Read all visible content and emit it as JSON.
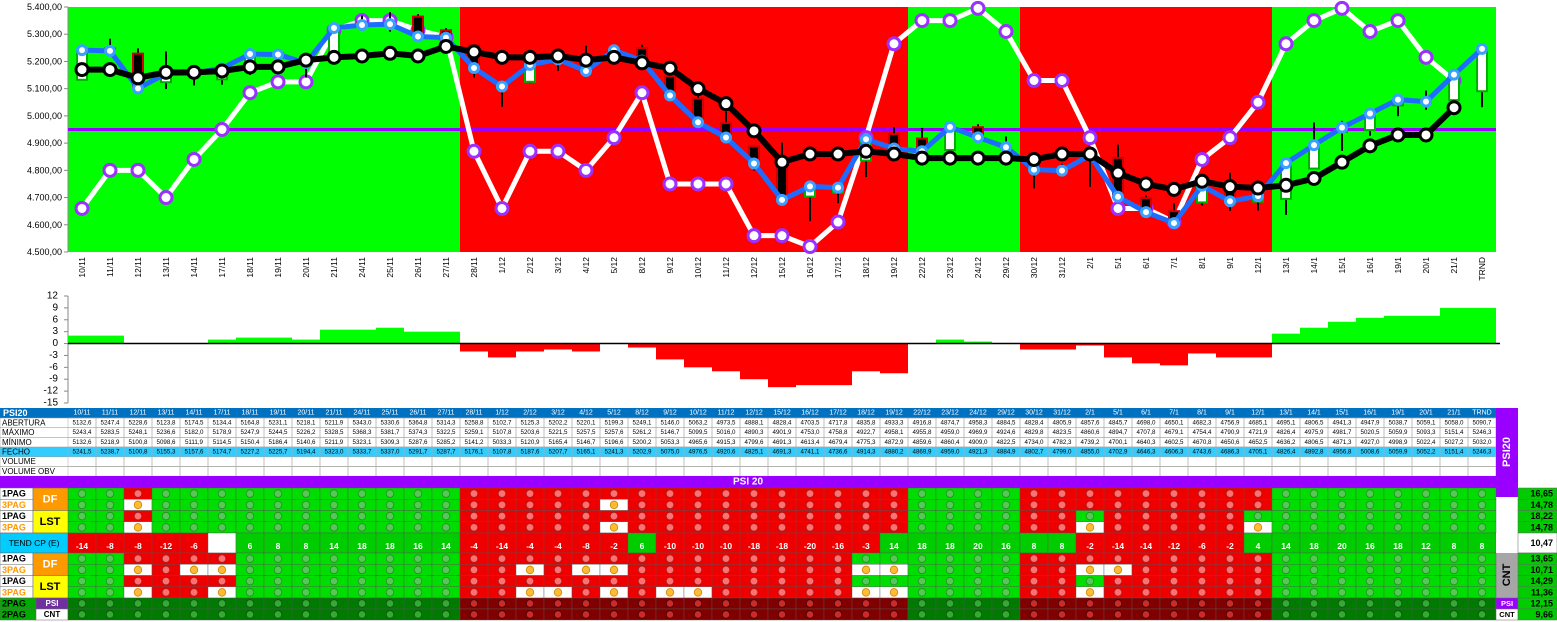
{
  "chart_data": [
    {
      "type": "candlestick",
      "categories": [
        "10/11",
        "11/11",
        "12/11",
        "13/11",
        "14/11",
        "17/11",
        "18/11",
        "19/11",
        "20/11",
        "21/11",
        "24/11",
        "25/11",
        "26/11",
        "27/11",
        "28/11",
        "1/12",
        "2/12",
        "3/12",
        "4/12",
        "5/12",
        "8/12",
        "9/12",
        "10/12",
        "11/12",
        "12/12",
        "15/12",
        "16/12",
        "17/12",
        "18/12",
        "19/12",
        "22/12",
        "23/12",
        "24/12",
        "29/12",
        "30/12",
        "31/12",
        "2/1",
        "5/1",
        "6/1",
        "7/1",
        "8/1",
        "9/1",
        "12/1",
        "13/1",
        "14/1",
        "15/1",
        "16/1",
        "19/1",
        "20/1",
        "21/1",
        "TRND"
      ],
      "open": [
        5132.6,
        5247.4,
        5228.6,
        5123.8,
        5174.5,
        5134.4,
        5164.8,
        5231.1,
        5218.1,
        5211.9,
        5343.0,
        5330.6,
        5364.8,
        5314.3,
        5258.8,
        5102.7,
        5125.3,
        5202.2,
        5220.1,
        5199.3,
        5249.1,
        5146.0,
        5063.2,
        4973.5,
        4888.1,
        4828.4,
        4703.5,
        4717.8,
        4835.8,
        4933.3,
        4916.8,
        4874.7,
        4958.3,
        4884.5,
        4828.4,
        4805.9,
        4857.6,
        4845.7,
        4698.0,
        4650.1,
        4682.3,
        4756.9,
        4685.1,
        4695.1,
        4806.5,
        4941.3,
        4947.9,
        5038.7,
        5059.1,
        5058.0,
        5090.7
      ],
      "high": [
        5243.4,
        5283.5,
        5248.1,
        5236.6,
        5182.0,
        5178.9,
        5247.9,
        5244.5,
        5226.2,
        5328.5,
        5368.3,
        5381.7,
        5374.3,
        5322.5,
        5259.1,
        5107.8,
        5203.6,
        5221.5,
        5257.5,
        5257.6,
        5261.2,
        5146.7,
        5099.5,
        5016.0,
        4890.3,
        4901.9,
        4753.0,
        4758.8,
        4922.7,
        4958.1,
        4955.8,
        4959.0,
        4969.9,
        4924.6,
        4829.8,
        4823.5,
        4860.6,
        4894.7,
        4707.8,
        4679.1,
        4754.4,
        4790.9,
        4721.9,
        4826.4,
        4975.9,
        4981.7,
        5020.5,
        5059.9,
        5093.3,
        5151.4,
        5246.3
      ],
      "low": [
        5132.6,
        5218.9,
        5100.8,
        5098.6,
        5111.9,
        5114.5,
        5150.4,
        5186.4,
        5140.6,
        5211.9,
        5323.1,
        5309.3,
        5287.6,
        5285.2,
        5141.2,
        5033.3,
        5120.9,
        5165.4,
        5146.7,
        5196.6,
        5200.2,
        5053.3,
        4965.6,
        4915.3,
        4799.6,
        4691.3,
        4613.4,
        4679.4,
        4775.3,
        4872.9,
        4859.6,
        4860.4,
        4909.0,
        4822.5,
        4734.0,
        4782.3,
        4739.2,
        4700.1,
        4640.3,
        4602.5,
        4670.8,
        4650.6,
        4652.5,
        4636.2,
        4806.5,
        4871.3,
        4927.0,
        4998.9,
        5022.4,
        5027.2,
        5032.0
      ],
      "close": [
        5241.5,
        5238.7,
        5100.8,
        5155.3,
        5157.6,
        5174.7,
        5227.2,
        5225.7,
        5194.4,
        5323.0,
        5333.7,
        5337.0,
        5291.7,
        5287.7,
        5176.1,
        5107.8,
        5187.6,
        5207.7,
        5165.1,
        5241.3,
        5202.9,
        5075.0,
        4976.5,
        4920.6,
        4825.1,
        4691.3,
        4741.1,
        4736.6,
        4914.3,
        4880.2,
        4869.9,
        4959.0,
        4921.3,
        4884.9,
        4802.7,
        4799.0,
        4855.0,
        4702.9,
        4646.3,
        4606.3,
        4743.6,
        4686.3,
        4705.1,
        4826.4,
        4892.8,
        4956.8,
        5008.6,
        5059.9,
        5052.2,
        5151.4,
        5246.3
      ],
      "close_line_color": "#1e6cff",
      "series": [
        {
          "color": "#000000",
          "marker_color": "#000000",
          "values": [
            5170,
            5170,
            5140,
            5160,
            5160,
            5165,
            5180,
            5180,
            5205,
            5215,
            5220,
            5230,
            5220,
            5255,
            5235,
            5215,
            5215,
            5220,
            5205,
            5215,
            5195,
            5175,
            5100,
            5045,
            4945,
            4830,
            4860,
            4860,
            4870,
            4860,
            4845,
            4845,
            4845,
            4845,
            4840,
            4860,
            4860,
            4790,
            4750,
            4730,
            4760,
            4740,
            4735,
            4745,
            4770,
            4830,
            4890,
            4930,
            4930,
            5030,
            null
          ]
        },
        {
          "color": "#ffffff",
          "marker_color": "#9b30ff",
          "values": [
            4660,
            4800,
            4800,
            4700,
            4840,
            4950,
            5085,
            5125,
            5125,
            5315,
            5350,
            5350,
            5315,
            5290,
            4870,
            4660,
            4870,
            4870,
            4800,
            4920,
            5085,
            4750,
            4750,
            4750,
            4560,
            4560,
            4520,
            4610,
            4920,
            5265,
            5350,
            5350,
            5395,
            5310,
            5130,
            5130,
            4920,
            4660,
            4660,
            4610,
            4840,
            4920,
            5050,
            5265,
            5350,
            5395,
            5310,
            5350,
            5215,
            5130,
            null
          ]
        }
      ],
      "hline": {
        "value": 4950,
        "color": "#9900ff"
      },
      "background": [
        "#00ff00",
        "#00ff00",
        "#00ff00",
        "#00ff00",
        "#00ff00",
        "#00ff00",
        "#00ff00",
        "#00ff00",
        "#00ff00",
        "#00ff00",
        "#00ff00",
        "#00ff00",
        "#00ff00",
        "#00ff00",
        "#ff0000",
        "#ff0000",
        "#ff0000",
        "#ff0000",
        "#ff0000",
        "#ff0000",
        "#ff0000",
        "#ff0000",
        "#ff0000",
        "#ff0000",
        "#ff0000",
        "#ff0000",
        "#ff0000",
        "#ff0000",
        "#ff0000",
        "#ff0000",
        "#00ff00",
        "#00ff00",
        "#00ff00",
        "#00ff00",
        "#ff0000",
        "#ff0000",
        "#ff0000",
        "#ff0000",
        "#ff0000",
        "#ff0000",
        "#ff0000",
        "#ff0000",
        "#ff0000",
        "#00ff00",
        "#00ff00",
        "#00ff00",
        "#00ff00",
        "#00ff00",
        "#00ff00",
        "#00ff00",
        "#00ff00"
      ],
      "ylim": [
        4500,
        5400
      ],
      "yticks": [
        {
          "value": 4500,
          "label": "4.500,00"
        },
        {
          "value": 4600,
          "label": "4.600,00"
        },
        {
          "value": 4700,
          "label": "4.700,00"
        },
        {
          "value": 4800,
          "label": "4.800,00"
        },
        {
          "value": 4900,
          "label": "4.900,00"
        },
        {
          "value": 5000,
          "label": "5.000,00"
        },
        {
          "value": 5100,
          "label": "5.100,00"
        },
        {
          "value": 5200,
          "label": "5.200,00"
        },
        {
          "value": 5300,
          "label": "5.300,00"
        },
        {
          "value": 5400,
          "label": "5.400,00"
        }
      ]
    },
    {
      "type": "bar",
      "values": [
        2,
        2,
        0,
        0,
        0,
        1,
        1.5,
        1.5,
        1,
        3.5,
        3.5,
        4,
        3,
        3,
        -2,
        -3.5,
        -2,
        -1.5,
        -2,
        0,
        -1,
        -4,
        -6,
        -7,
        -9,
        -11,
        -10.5,
        -10.5,
        -7,
        -7.5,
        0,
        1,
        0.5,
        0,
        -1.5,
        -1.5,
        -0.5,
        -3.5,
        -5,
        -5.5,
        -2.5,
        -3.5,
        -3.5,
        2.5,
        4,
        5.5,
        6.5,
        7,
        7,
        9,
        9
      ],
      "positive_color": "#00ff00",
      "negative_color": "#ff0000",
      "ylim": [
        -15,
        12
      ],
      "yticks": [
        12,
        9,
        6,
        3,
        0,
        -3,
        -6,
        -9,
        -12,
        -15
      ]
    }
  ],
  "table": {
    "corner": "PSI20",
    "row_labels": [
      "ABERTURA",
      "MÁXIMO",
      "MÍNIMO",
      "FECHO",
      "VOLUME",
      "VOLUME OBV"
    ],
    "rows": [
      [
        "5132,6",
        "5247,4",
        "5228,6",
        "5123,8",
        "5174,5",
        "5134,4",
        "5164,8",
        "5231,1",
        "5218,1",
        "5211,9",
        "5343,0",
        "5330,6",
        "5364,8",
        "5314,3",
        "5258,8",
        "5102,7",
        "5125,3",
        "5202,2",
        "5220,1",
        "5199,3",
        "5249,1",
        "5146,0",
        "5063,2",
        "4973,5",
        "4888,1",
        "4828,4",
        "4703,5",
        "4717,8",
        "4835,8",
        "4933,3",
        "4916,8",
        "4874,7",
        "4958,3",
        "4884,5",
        "4828,4",
        "4805,9",
        "4857,6",
        "4845,7",
        "4698,0",
        "4650,1",
        "4682,3",
        "4756,9",
        "4685,1",
        "4695,1",
        "4806,5",
        "4941,3",
        "4947,9",
        "5038,7",
        "5059,1",
        "5058,0",
        "5090,7"
      ],
      [
        "5243,4",
        "5283,5",
        "5248,1",
        "5236,6",
        "5182,0",
        "5178,9",
        "5247,9",
        "5244,5",
        "5226,2",
        "5328,5",
        "5368,3",
        "5381,7",
        "5374,3",
        "5322,5",
        "5259,1",
        "5107,8",
        "5203,6",
        "5221,5",
        "5257,5",
        "5257,6",
        "5261,2",
        "5146,7",
        "5099,5",
        "5016,0",
        "4890,3",
        "4901,9",
        "4753,0",
        "4758,8",
        "4922,7",
        "4958,1",
        "4955,8",
        "4959,0",
        "4969,9",
        "4924,6",
        "4829,8",
        "4823,5",
        "4860,6",
        "4894,7",
        "4707,8",
        "4679,1",
        "4754,4",
        "4790,9",
        "4721,9",
        "4826,4",
        "4975,9",
        "4981,7",
        "5020,5",
        "5059,9",
        "5093,3",
        "5151,4",
        "5246,3"
      ],
      [
        "5132,6",
        "5218,9",
        "5100,8",
        "5098,6",
        "5111,9",
        "5114,5",
        "5150,4",
        "5186,4",
        "5140,6",
        "5211,9",
        "5323,1",
        "5309,3",
        "5287,6",
        "5285,2",
        "5141,2",
        "5033,3",
        "5120,9",
        "5165,4",
        "5146,7",
        "5196,6",
        "5200,2",
        "5053,3",
        "4965,6",
        "4915,3",
        "4799,6",
        "4691,3",
        "4613,4",
        "4679,4",
        "4775,3",
        "4872,9",
        "4859,6",
        "4860,4",
        "4909,0",
        "4822,5",
        "4734,0",
        "4782,3",
        "4739,2",
        "4700,1",
        "4640,3",
        "4602,5",
        "4670,8",
        "4650,6",
        "4652,5",
        "4636,2",
        "4806,5",
        "4871,3",
        "4927,0",
        "4998,9",
        "5022,4",
        "5027,2",
        "5032,0"
      ],
      [
        "5241,5",
        "5238,7",
        "5100,8",
        "5155,3",
        "5157,6",
        "5174,7",
        "5227,2",
        "5225,7",
        "5194,4",
        "5323,0",
        "5333,7",
        "5337,0",
        "5291,7",
        "5287,7",
        "5176,1",
        "5107,8",
        "5187,6",
        "5207,7",
        "5165,1",
        "5241,3",
        "5202,9",
        "5075,0",
        "4976,5",
        "4920,6",
        "4825,1",
        "4691,3",
        "4741,1",
        "4736,6",
        "4914,3",
        "4880,2",
        "4869,9",
        "4959,0",
        "4921,3",
        "4884,9",
        "4802,7",
        "4799,0",
        "4855,0",
        "4702,9",
        "4646,3",
        "4606,3",
        "4743,6",
        "4686,3",
        "4705,1",
        "4826,4",
        "4892,8",
        "4956,8",
        "5008,6",
        "5059,9",
        "5052,2",
        "5151,4",
        "5246,3"
      ]
    ]
  },
  "signals": {
    "banner": "PSI 20",
    "side_title": "PSI20",
    "block_title": "CNT",
    "top": {
      "groups": [
        "DF",
        "LST"
      ],
      "rows": [
        {
          "page": "1PAG",
          "states": "GGRGGGGGGGGGGGRRRRRRRRRRRRRRRRGGGGRRRRRRRRRGGGGGGGG",
          "side_value": "16,65"
        },
        {
          "page": "3PAG",
          "states": "GGOGGGGGGGGGGGRRRRRORRRRRRRRRRGGGGRRRRRRRRRGGGGGGGG",
          "side_value": "14,78"
        },
        {
          "page": "1PAG",
          "states": "GGRGGGGGGGGGGGRRRRRRRRRRRRRRRRGGGGRRGRRRRRGGGGGGGGG",
          "side_value": "18,22"
        },
        {
          "page": "3PAG",
          "states": "GGOGGGGGGGGGGGRRRRRORRRRRRRRRRGGGGRRORRRRROGGGGGGGG",
          "side_value": "14,78"
        }
      ]
    },
    "trend": {
      "label": "TEND CP (E)",
      "values": [
        -14,
        -8,
        -8,
        -12,
        -6,
        null,
        6,
        8,
        8,
        14,
        18,
        18,
        16,
        14,
        -4,
        -14,
        -4,
        -4,
        -8,
        -2,
        6,
        -10,
        -10,
        -10,
        -18,
        -18,
        -20,
        -16,
        -3,
        14,
        18,
        18,
        20,
        16,
        8,
        8,
        -2,
        -14,
        -14,
        -12,
        -6,
        -2,
        4,
        14,
        18,
        20,
        16,
        18,
        12,
        8,
        8
      ],
      "side_value": "10,47"
    },
    "bottom": {
      "groups": [
        "DF",
        "LST"
      ],
      "rows": [
        {
          "page": "1PAG",
          "states": "GGRRRRGGGGGGGGRRRRRRRRRRRRRRGGGGGGRRRRRRRRRGGGGGGGG",
          "side_value": "13,65"
        },
        {
          "page": "3PAG",
          "states": "GGOROOGGGGGGGGRROROORRRRRRRROOGGGGRROORRRRRGGGGGGGG",
          "side_value": "10,71"
        },
        {
          "page": "1PAG",
          "states": "GGRRRRGGGGGGGGRRRRRRRRRRRRRRGGGGGGRRGRRRRRRGGGGGGGG",
          "side_value": "14,29"
        },
        {
          "page": "3PAG",
          "states": "GGORROGGGGGGGGRROOROROORRRRROOGGGGRRORRRRRRGGGGGGGG",
          "side_value": "11,36"
        }
      ]
    },
    "summary": [
      {
        "page": "2PAG",
        "tag": "PSI",
        "states": "ggggggggggggggrrrrrrrrrrrrrrrrggggrrrrrrrrrgggggggg",
        "side_value": "12,15"
      },
      {
        "page": "2PAG",
        "tag": "CNT",
        "states": "ggggggggggggggrrrrrrrrrrrrrrrrggggrrrrrrrrrgggggggg",
        "side_value": "9,66"
      }
    ]
  }
}
